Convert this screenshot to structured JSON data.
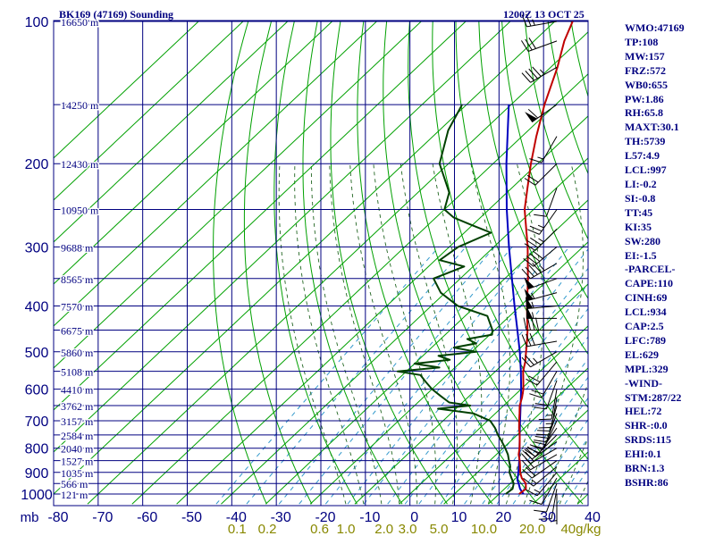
{
  "colors": {
    "background": "#ffffff",
    "isobar": "#000080",
    "isotherm": "#00a000",
    "dry_adiabat": "#00a000",
    "moist_adiabat": "#226622",
    "mixing_ratio": "#3399cc",
    "temperature": "#c00000",
    "dewpoint": "#004000",
    "parcel": "#0000c0",
    "text": "#000080",
    "mixing_label": "#888800",
    "barb": "#000000"
  },
  "header": {
    "station": "BK169 (47169) Sounding",
    "time": "1200Z 13 OCT 25"
  },
  "indices": [
    "WMO:47169",
    "TP:108",
    "MW:157",
    "FRZ:572",
    "WB0:655",
    "PW:1.86",
    "RH:65.8",
    "MAXT:30.1",
    "TH:5739",
    "L57:4.9",
    "LCL:997",
    "LI:-0.2",
    "SI:-0.8",
    "TT:45",
    "KI:35",
    "SW:280",
    "EI:-1.5",
    "-PARCEL-",
    "CAPE:110",
    "CINH:69",
    "LCL:934",
    "CAP:2.5",
    "LFC:789",
    "EL:629",
    "MPL:329",
    "-WIND-",
    "STM:287/22",
    "HEL:72",
    "SHR-:0.0",
    "SRDS:115",
    "EHI:0.1",
    "BRN:1.3",
    "BSHR:86"
  ],
  "chart_data": {
    "type": "skew-t",
    "title": "BK169 (47169) Sounding",
    "time": "1200Z 13 OCT 25",
    "pressure_axis": {
      "unit": "mb",
      "range": [
        1000,
        100
      ],
      "ticks": [
        100,
        200,
        300,
        400,
        500,
        600,
        700,
        800,
        900,
        1000
      ],
      "label": "mb"
    },
    "temperature_axis": {
      "unit": "C",
      "range": [
        -80,
        40
      ],
      "ticks": [
        -80,
        -70,
        -60,
        -50,
        -40,
        -30,
        -20,
        -10,
        0,
        10,
        20,
        30,
        40
      ]
    },
    "mixing_ratio_labels": [
      "0.1",
      "0.2",
      "0.6",
      "1.0",
      "2.0",
      "3.0",
      "5.0",
      "10.0",
      "20.0",
      "40g/kg"
    ],
    "mixing_ratio_values": [
      0.1,
      0.2,
      0.6,
      1.0,
      2.0,
      3.0,
      5.0,
      10.0,
      20.0,
      40.0
    ],
    "height_labels": [
      {
        "p": 1000,
        "label": "121 m"
      },
      {
        "p": 950,
        "label": "566 m"
      },
      {
        "p": 900,
        "label": "1035 m"
      },
      {
        "p": 850,
        "label": "1527 m"
      },
      {
        "p": 800,
        "label": "2040 m"
      },
      {
        "p": 750,
        "label": "2584 m"
      },
      {
        "p": 700,
        "label": "3157 m"
      },
      {
        "p": 650,
        "label": "3762 m"
      },
      {
        "p": 600,
        "label": "4410 m"
      },
      {
        "p": 550,
        "label": "5108 m"
      },
      {
        "p": 500,
        "label": "5860 m"
      },
      {
        "p": 450,
        "label": "6675 m"
      },
      {
        "p": 400,
        "label": "7570 m"
      },
      {
        "p": 350,
        "label": "8565 m"
      },
      {
        "p": 300,
        "label": "9688 m"
      },
      {
        "p": 250,
        "label": "10950 m"
      },
      {
        "p": 200,
        "label": "12430 m"
      },
      {
        "p": 150,
        "label": "14250 m"
      },
      {
        "p": 100,
        "label": "16650 m"
      }
    ],
    "series": [
      {
        "name": "Temperature",
        "p": [
          1000,
          975,
          950,
          925,
          900,
          875,
          850,
          825,
          800,
          775,
          750,
          725,
          700,
          675,
          650,
          625,
          600,
          575,
          550,
          525,
          500,
          475,
          450,
          425,
          400,
          350,
          300,
          250,
          225,
          200,
          175,
          150,
          125,
          110,
          100
        ],
        "t": [
          24.5,
          24.8,
          23.5,
          21.3,
          19.6,
          18.2,
          16.7,
          15.0,
          13.7,
          12.2,
          10.6,
          8.8,
          7.1,
          5.4,
          3.6,
          2.2,
          0.5,
          -1.6,
          -3.8,
          -5.6,
          -7.8,
          -10.1,
          -12.6,
          -15.5,
          -18.5,
          -24.8,
          -32.4,
          -42.0,
          -46.5,
          -51.5,
          -56.8,
          -62.5,
          -68.5,
          -73.2,
          -76.0
        ]
      },
      {
        "name": "Dewpoint",
        "p": [
          1000,
          975,
          950,
          925,
          900,
          875,
          850,
          825,
          800,
          775,
          750,
          725,
          700,
          675,
          660,
          650,
          640,
          620,
          600,
          580,
          560,
          550,
          540,
          530,
          520,
          510,
          500,
          490,
          480,
          470,
          460,
          450,
          420,
          400,
          375,
          350,
          330,
          320,
          300,
          280,
          270,
          260,
          250,
          230,
          200,
          170,
          150
        ],
        "td": [
          21.5,
          21.8,
          20.8,
          19.0,
          17.2,
          16.0,
          14.3,
          12.6,
          10.5,
          8.2,
          5.7,
          3.4,
          0.6,
          -5.0,
          -14.0,
          -7.5,
          -13.0,
          -16.5,
          -20.0,
          -23.0,
          -26.0,
          -32.0,
          -23.5,
          -30.0,
          -23.0,
          -26.5,
          -19.0,
          -25.0,
          -21.0,
          -24.0,
          -19.5,
          -20.5,
          -25.0,
          -34.0,
          -41.0,
          -46.0,
          -42.0,
          -49.0,
          -48.0,
          -44.0,
          -50.0,
          -56.0,
          -60.0,
          -63.0,
          -72.0,
          -78.0,
          -81.0
        ]
      },
      {
        "name": "Parcel",
        "p": [
          1000,
          975,
          950,
          934,
          900,
          850,
          800,
          750,
          700,
          650,
          600,
          550,
          500,
          450,
          400,
          350,
          300,
          250,
          200,
          150
        ],
        "t": [
          25.5,
          23.5,
          21.9,
          20.8,
          19.2,
          16.6,
          13.7,
          10.6,
          7.3,
          3.8,
          0.0,
          -4.3,
          -9.2,
          -14.9,
          -21.3,
          -28.4,
          -36.6,
          -46.0,
          -57.0,
          -70.5
        ]
      }
    ],
    "wind_barbs": {
      "unit": "kt",
      "p": [
        1000,
        975,
        950,
        925,
        900,
        875,
        850,
        825,
        800,
        775,
        750,
        725,
        700,
        675,
        650,
        625,
        600,
        575,
        550,
        525,
        500,
        475,
        450,
        425,
        400,
        375,
        350,
        325,
        300,
        275,
        250,
        225,
        200,
        175,
        150,
        125,
        110,
        100
      ],
      "direction": [
        180,
        190,
        200,
        210,
        220,
        230,
        235,
        240,
        240,
        235,
        225,
        215,
        205,
        200,
        195,
        190,
        190,
        200,
        210,
        220,
        240,
        260,
        270,
        270,
        265,
        255,
        250,
        240,
        230,
        225,
        215,
        200,
        225,
        210,
        235,
        240,
        250,
        260
      ],
      "speed": [
        5,
        10,
        10,
        10,
        15,
        15,
        20,
        20,
        20,
        20,
        20,
        20,
        20,
        20,
        20,
        15,
        15,
        20,
        20,
        20,
        25,
        30,
        40,
        55,
        55,
        55,
        50,
        45,
        40,
        35,
        25,
        10,
        20,
        15,
        60,
        45,
        30,
        25
      ]
    }
  }
}
